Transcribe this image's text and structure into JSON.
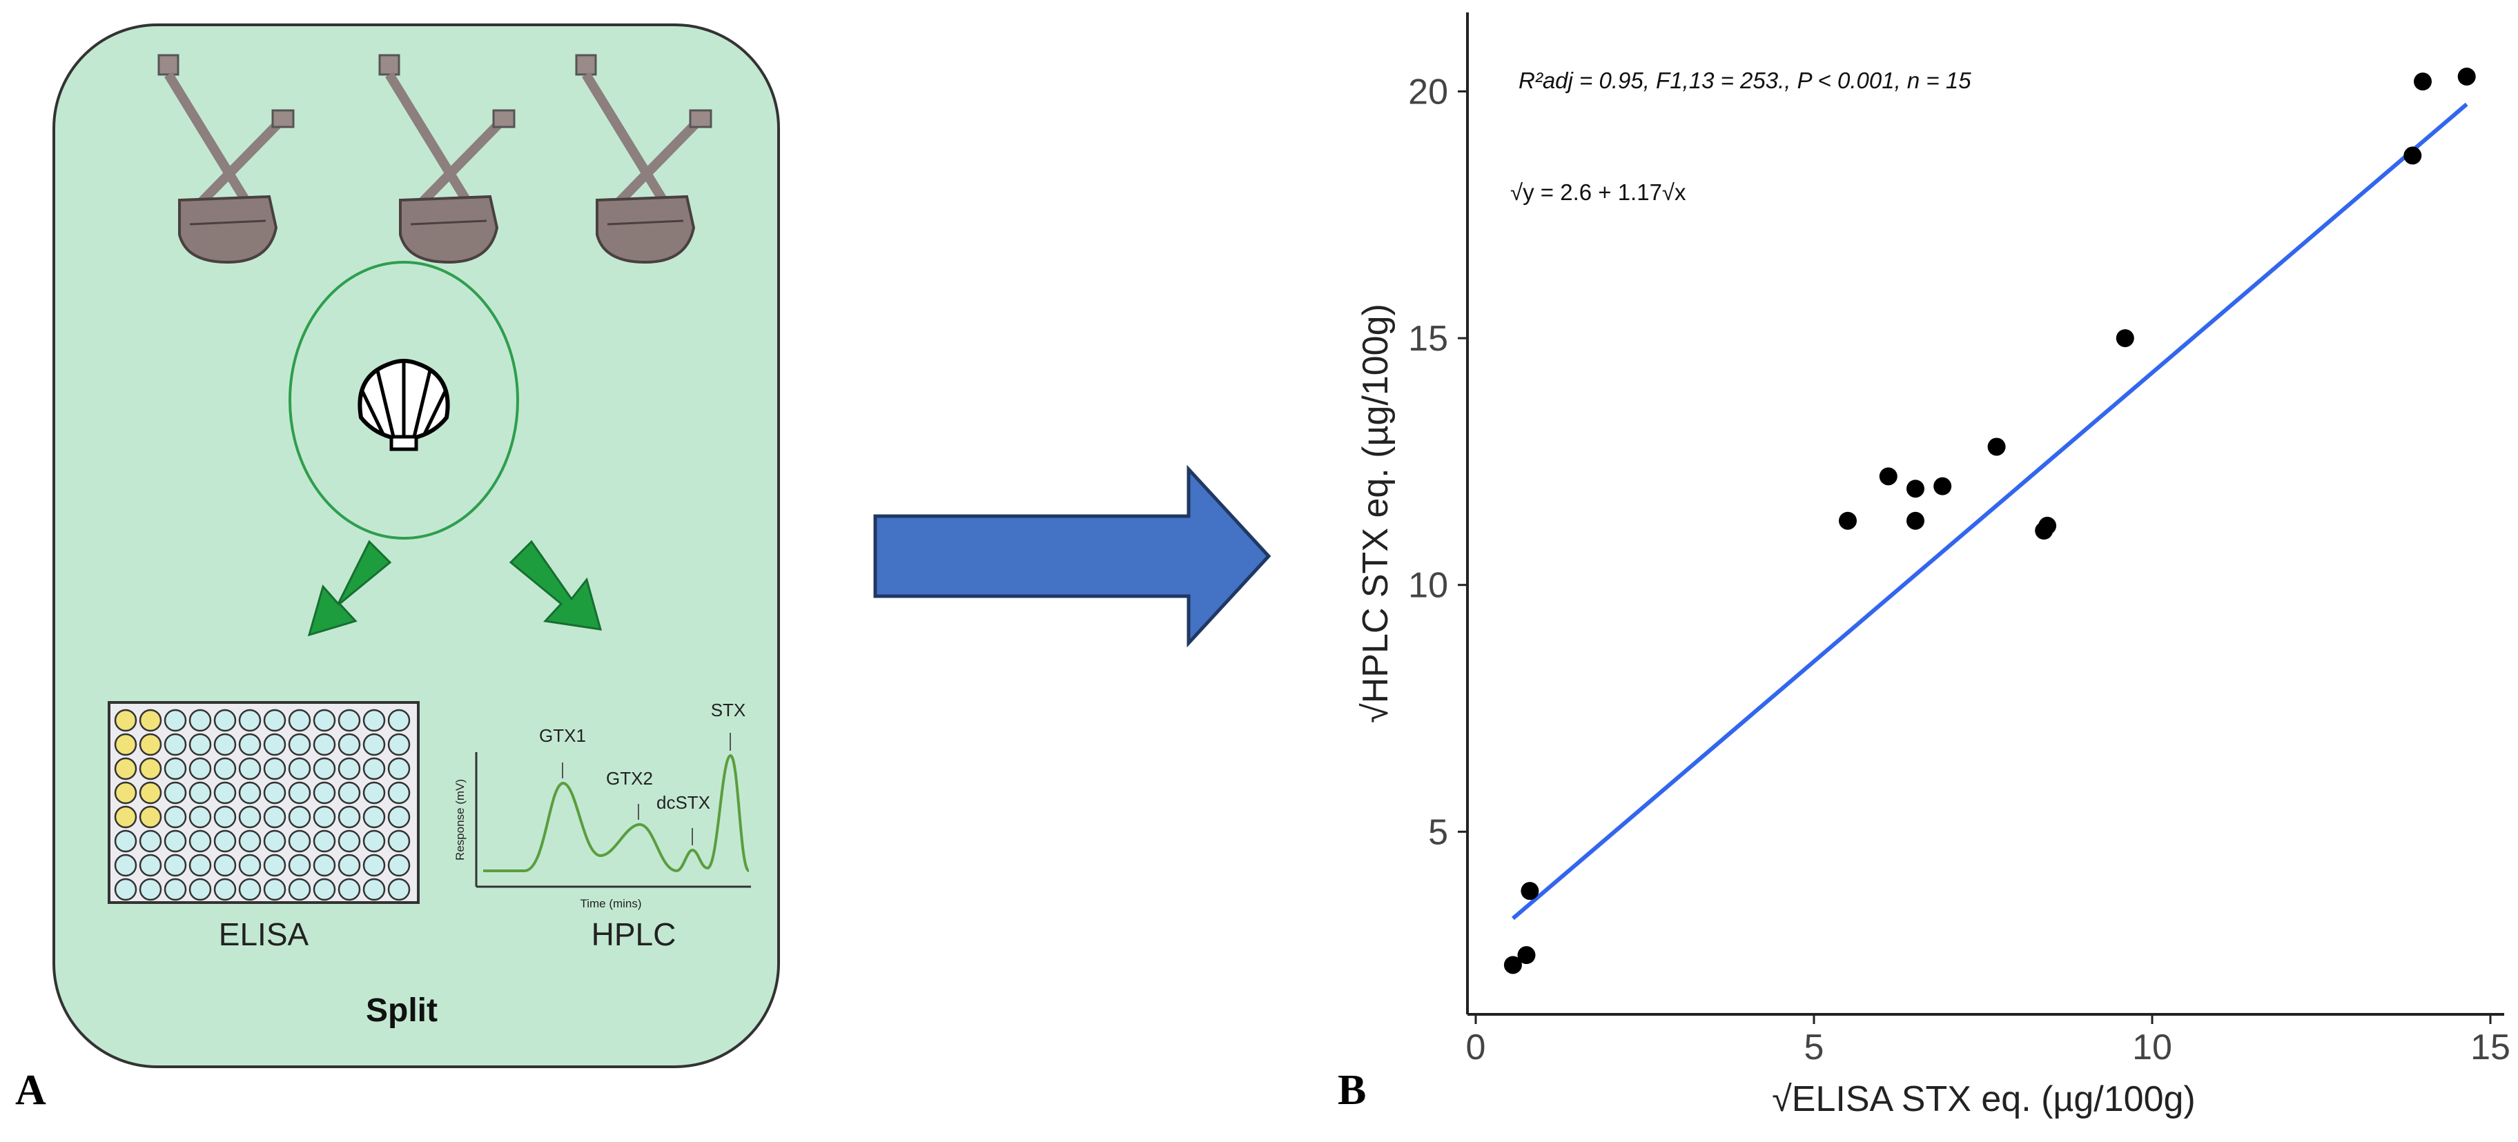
{
  "panel_a": {
    "panel_letter": "A",
    "elisa_label": "ELISA",
    "hplc_label": "HPLC",
    "split_label": "Split",
    "hplc_axis_y": "Response (mV)",
    "hplc_axis_x": "Time (mins)",
    "peaks": [
      "GTX1",
      "GTX2",
      "dcSTX",
      "STX"
    ],
    "dredge_icon": "dredge-icon",
    "shell_icon": "scallop-shell-icon",
    "arrow_color": "#1E9D3E",
    "panel_bg": "#C3E8D2"
  },
  "transition_arrow": {
    "color": "#4472C4",
    "icon": "right-arrow-icon"
  },
  "panel_b": {
    "panel_letter": "B",
    "stats_text": "R²adj = 0.95, F1,13 = 253., P < 0.001, n = 15",
    "equation_text": "√y = 2.6 + 1.17√x"
  },
  "chart_data": {
    "type": "scatter",
    "xlabel": "√ELISA STX eq. (µg/100g)",
    "ylabel": "√HPLC STX eq. (µg/100g)",
    "xlim": [
      0,
      15
    ],
    "ylim": [
      1.3,
      21.6
    ],
    "xticks": [
      0,
      5,
      10,
      15
    ],
    "yticks": [
      5,
      10,
      15,
      20
    ],
    "grid": false,
    "points": [
      {
        "x": 0.55,
        "y": 2.3
      },
      {
        "x": 0.75,
        "y": 2.5
      },
      {
        "x": 0.8,
        "y": 3.8
      },
      {
        "x": 5.5,
        "y": 11.3
      },
      {
        "x": 6.1,
        "y": 12.2
      },
      {
        "x": 6.5,
        "y": 11.95
      },
      {
        "x": 6.5,
        "y": 11.3
      },
      {
        "x": 6.9,
        "y": 12.0
      },
      {
        "x": 7.7,
        "y": 12.8
      },
      {
        "x": 8.4,
        "y": 11.1
      },
      {
        "x": 8.45,
        "y": 11.2
      },
      {
        "x": 9.6,
        "y": 15.0
      },
      {
        "x": 13.85,
        "y": 18.7
      },
      {
        "x": 14.0,
        "y": 20.2
      },
      {
        "x": 14.65,
        "y": 20.3
      }
    ],
    "fit_line": {
      "intercept": 2.6,
      "slope": 1.17,
      "x_range": [
        0.55,
        14.65
      ],
      "color": "#3366EE"
    },
    "point_color": "#000000"
  }
}
